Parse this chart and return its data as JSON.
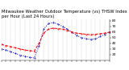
{
  "title": "Milwaukee Weather Outdoor Temperature (vs) THSW Index per Hour (Last 24 Hours)",
  "title_fontsize": 3.8,
  "background_color": "#ffffff",
  "plot_bg_color": "#ffffff",
  "grid_color": "#888888",
  "hours": [
    0,
    1,
    2,
    3,
    4,
    5,
    6,
    7,
    8,
    9,
    10,
    11,
    12,
    13,
    14,
    15,
    16,
    17,
    18,
    19,
    20,
    21,
    22,
    23
  ],
  "temp": [
    38,
    36,
    34,
    32,
    30,
    28,
    27,
    26,
    40,
    58,
    65,
    67,
    66,
    65,
    63,
    60,
    58,
    57,
    56,
    55,
    56,
    57,
    58,
    60
  ],
  "thsw": [
    30,
    28,
    25,
    22,
    19,
    17,
    15,
    14,
    35,
    65,
    75,
    77,
    74,
    70,
    65,
    60,
    54,
    50,
    48,
    47,
    48,
    52,
    56,
    60
  ],
  "temp_color": "#ff0000",
  "thsw_color": "#0000cc",
  "ylim": [
    10,
    82
  ],
  "xlim": [
    0,
    23
  ],
  "yticks": [
    20,
    30,
    40,
    50,
    60,
    70,
    80
  ],
  "ylabel_fontsize": 3.2,
  "tick_fontsize": 2.8,
  "lw_temp": 0.7,
  "lw_thsw": 0.7,
  "marker_size": 0.8,
  "vgrid_positions": [
    0,
    1,
    2,
    3,
    4,
    5,
    6,
    7,
    8,
    9,
    10,
    11,
    12,
    13,
    14,
    15,
    16,
    17,
    18,
    19,
    20,
    21,
    22,
    23
  ]
}
